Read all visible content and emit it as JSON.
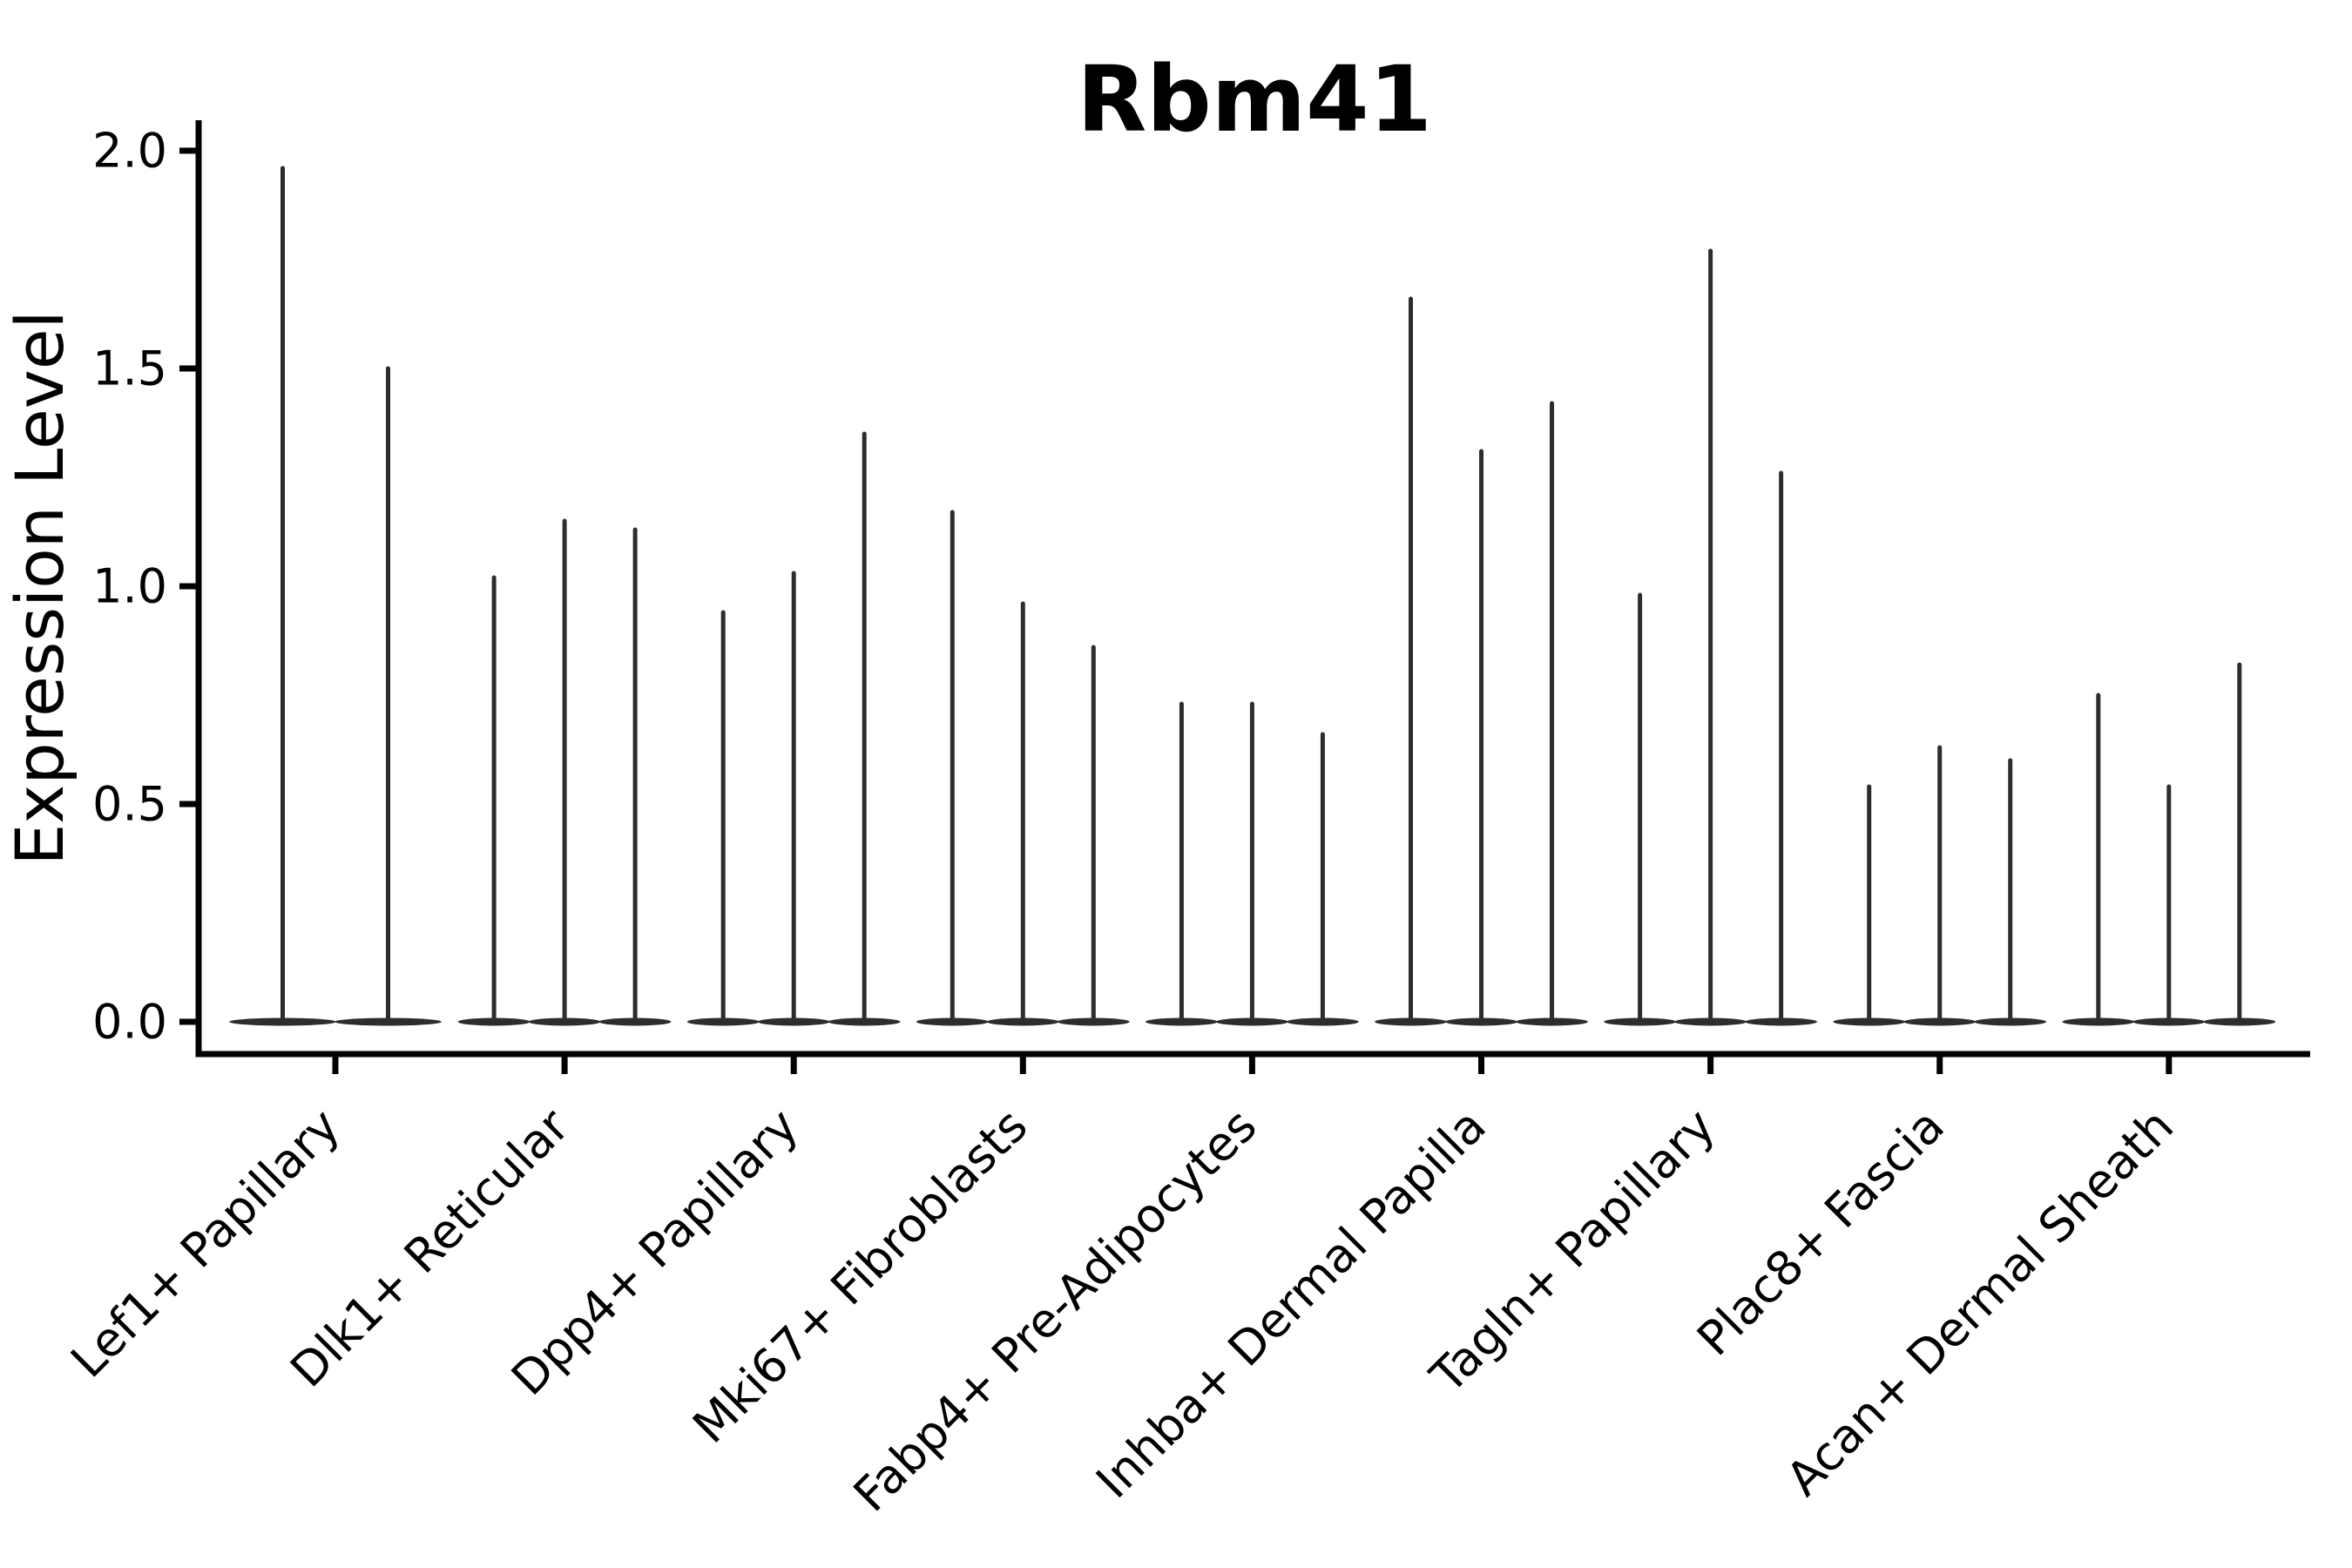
{
  "chart_data": {
    "type": "violin",
    "title": "Rbm41",
    "ylabel": "Expression Level",
    "xlabel": "",
    "ylim": [
      0.0,
      2.08
    ],
    "yticks": [
      0.0,
      0.5,
      1.0,
      1.5,
      2.0
    ],
    "ytick_labels": [
      "0.0",
      "0.5",
      "1.0",
      "1.5",
      "2.0"
    ],
    "grid": false,
    "legend": false,
    "violin_color": "#2d2d2d",
    "axis_color": "#000000",
    "categories": [
      "Lef1+ Papillary",
      "Dlk1+ Reticular",
      "Dpp4+ Papillary",
      "Mki67+ Fibroblasts",
      "Fabp4+ Pre-Adipocytes",
      "Inhba+ Dermal Papilla",
      "Tagln+ Papillary",
      "Plac8+ Fascia",
      "Acan+ Dermal Sheath"
    ],
    "series": [
      {
        "category": "Lef1+ Papillary",
        "violin_max_expression": [
          1.96,
          1.5
        ]
      },
      {
        "category": "Dlk1+ Reticular",
        "violin_max_expression": [
          1.02,
          1.15,
          1.13
        ]
      },
      {
        "category": "Dpp4+ Papillary",
        "violin_max_expression": [
          0.94,
          1.03,
          1.35
        ]
      },
      {
        "category": "Mki67+ Fibroblasts",
        "violin_max_expression": [
          1.17,
          0.96,
          0.86
        ]
      },
      {
        "category": "Fabp4+ Pre-Adipocytes",
        "violin_max_expression": [
          0.73,
          0.73,
          0.66
        ]
      },
      {
        "category": "Inhba+ Dermal Papilla",
        "violin_max_expression": [
          1.66,
          1.31,
          1.42
        ]
      },
      {
        "category": "Tagln+ Papillary",
        "violin_max_expression": [
          0.98,
          1.77,
          1.26
        ]
      },
      {
        "category": "Plac8+ Fascia",
        "violin_max_expression": [
          0.54,
          0.63,
          0.6
        ]
      },
      {
        "category": "Acan+ Dermal Sheath",
        "violin_max_expression": [
          0.75,
          0.54,
          0.82
        ]
      }
    ],
    "note": "Each violin is density-collapsed at 0 (flat base) with a thin spike up to the max expression value."
  }
}
